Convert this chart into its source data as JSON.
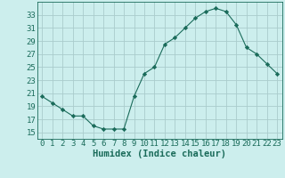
{
  "x": [
    0,
    1,
    2,
    3,
    4,
    5,
    6,
    7,
    8,
    9,
    10,
    11,
    12,
    13,
    14,
    15,
    16,
    17,
    18,
    19,
    20,
    21,
    22,
    23
  ],
  "y": [
    20.5,
    19.5,
    18.5,
    17.5,
    17.5,
    16.0,
    15.5,
    15.5,
    15.5,
    20.5,
    24.0,
    25.0,
    28.5,
    29.5,
    31.0,
    32.5,
    33.5,
    34.0,
    33.5,
    31.5,
    28.0,
    27.0,
    25.5,
    24.0
  ],
  "line_color": "#1a6b5a",
  "marker": "D",
  "marker_size": 2.2,
  "bg_color": "#cceeed",
  "grid_color": "#aacccc",
  "xlabel": "Humidex (Indice chaleur)",
  "xlim": [
    -0.5,
    23.5
  ],
  "ylim": [
    14,
    35
  ],
  "yticks": [
    15,
    17,
    19,
    21,
    23,
    25,
    27,
    29,
    31,
    33
  ],
  "xticks": [
    0,
    1,
    2,
    3,
    4,
    5,
    6,
    7,
    8,
    9,
    10,
    11,
    12,
    13,
    14,
    15,
    16,
    17,
    18,
    19,
    20,
    21,
    22,
    23
  ],
  "xlabel_fontsize": 7.5,
  "tick_fontsize": 6.5,
  "label_color": "#1a6b5a"
}
